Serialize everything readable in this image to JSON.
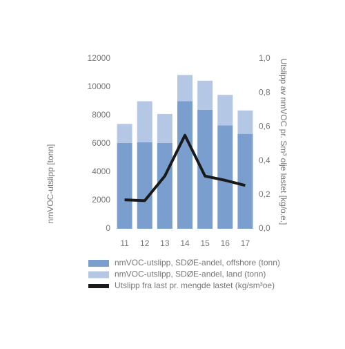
{
  "chart_data": {
    "type": "bar",
    "stacked": true,
    "categories": [
      "11",
      "12",
      "13",
      "14",
      "15",
      "16",
      "17"
    ],
    "y_label": "nmVOC-utslipp [tonn]",
    "y2_label": "Utslipp av nmVOC pr. Sm³ olje lastet [kg/o.e.]",
    "ylim": [
      0,
      12000
    ],
    "yticks": [
      0,
      2000,
      4000,
      6000,
      8000,
      10000,
      12000
    ],
    "y2lim": [
      0,
      1.0
    ],
    "y2ticks": [
      {
        "value": 0,
        "label": "0,0"
      },
      {
        "value": 0.2,
        "label": "0,2"
      },
      {
        "value": 0.4,
        "label": "0,4"
      },
      {
        "value": 0.6,
        "label": "0,6"
      },
      {
        "value": 0.8,
        "label": "0,8"
      },
      {
        "value": 1.0,
        "label": "1,0"
      }
    ],
    "series": [
      {
        "name": "nmVOC-utslipp, SDØE-andel, offshore (tonn)",
        "color": "#7a9fcf",
        "values": [
          6050,
          6100,
          6050,
          9000,
          8400,
          7300,
          6700
        ]
      },
      {
        "name": "nmVOC-utslipp, SDØE-andel, land (tonn)",
        "color": "#b4c8e6",
        "values": [
          1350,
          2900,
          2050,
          1850,
          2050,
          2150,
          1650
        ]
      },
      {
        "name": "Utslipp fra last pr. mengde lastet (kg/sm³oe)",
        "color": "#1a1a1a",
        "type": "line",
        "axis": "y2",
        "values": [
          0.17,
          0.165,
          0.31,
          0.55,
          0.31,
          0.285,
          0.255
        ]
      }
    ]
  }
}
